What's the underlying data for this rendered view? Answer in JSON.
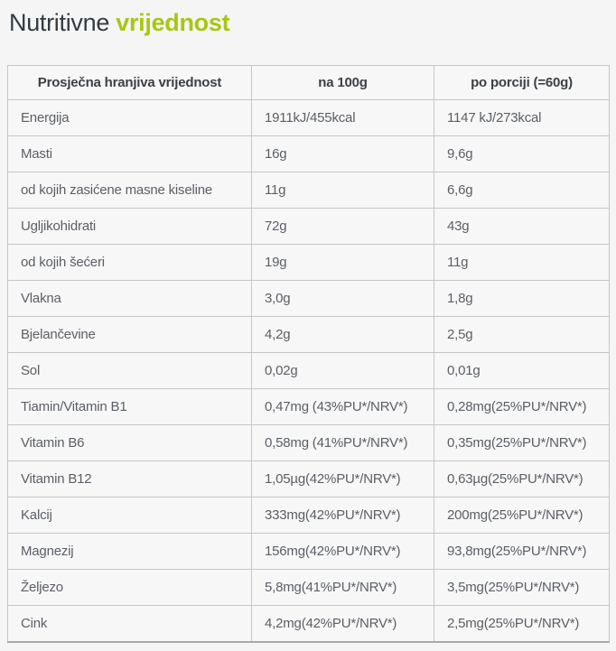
{
  "title": {
    "part1": "Nutritivne",
    "part2": "vrijednost"
  },
  "colors": {
    "accent_green": "#a9c613",
    "title_text": "#333b43",
    "header_text": "#3c4045",
    "body_text": "#5b5f66",
    "inner_border": "#c6c6c6",
    "outer_border": "#a9a9a9",
    "background": "#f5f5f5"
  },
  "table": {
    "headers": [
      "Prosječna hranjiva vrijednost",
      "na 100g",
      "po porciji (=60g)"
    ],
    "rows": [
      {
        "label": "Energija",
        "per_100g": "1911kJ/455kcal",
        "per_portion": "1147 kJ/273kcal"
      },
      {
        "label": "Masti",
        "per_100g": "16g",
        "per_portion": "9,6g"
      },
      {
        "label": "od kojih zasićene masne kiseline",
        "per_100g": "11g",
        "per_portion": "6,6g"
      },
      {
        "label": "Ugljikohidrati",
        "per_100g": "72g",
        "per_portion": "43g"
      },
      {
        "label": "od kojih šećeri",
        "per_100g": "19g",
        "per_portion": "11g"
      },
      {
        "label": "Vlakna",
        "per_100g": "3,0g",
        "per_portion": "1,8g"
      },
      {
        "label": "Bjelančevine",
        "per_100g": "4,2g",
        "per_portion": "2,5g"
      },
      {
        "label": "Sol",
        "per_100g": "0,02g",
        "per_portion": "0,01g"
      },
      {
        "label": "Tiamin/Vitamin B1",
        "per_100g": "0,47mg (43%PU*/NRV*)",
        "per_portion": "0,28mg(25%PU*/NRV*)"
      },
      {
        "label": "Vitamin B6",
        "per_100g": "0,58mg (41%PU*/NRV*)",
        "per_portion": "0,35mg(25%PU*/NRV*)"
      },
      {
        "label": "Vitamin B12",
        "per_100g": "1,05µg(42%PU*/NRV*)",
        "per_portion": "0,63µg(25%PU*/NRV*)"
      },
      {
        "label": "Kalcij",
        "per_100g": "333mg(42%PU*/NRV*)",
        "per_portion": "200mg(25%PU*/NRV*)"
      },
      {
        "label": "Magnezij",
        "per_100g": "156mg(42%PU*/NRV*)",
        "per_portion": "93,8mg(25%PU*/NRV*)"
      },
      {
        "label": "Željezo",
        "per_100g": "5,8mg(41%PU*/NRV*)",
        "per_portion": "3,5mg(25%PU*/NRV*)"
      },
      {
        "label": "Cink",
        "per_100g": "4,2mg(42%PU*/NRV*)",
        "per_portion": "2,5mg(25%PU*/NRV*)"
      }
    ]
  }
}
